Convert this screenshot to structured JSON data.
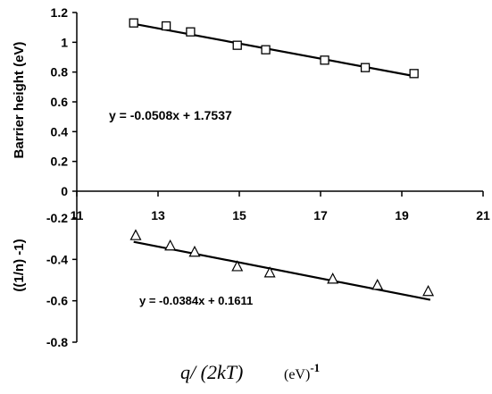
{
  "chart_data": [
    {
      "type": "scatter",
      "ylabel": "Barrier height (eV)",
      "ylim": [
        0,
        1.2
      ],
      "yticks": [
        0,
        0.2,
        0.4,
        0.6,
        0.8,
        1,
        1.2
      ],
      "ytick_labels": [
        "0",
        "0.2",
        "0.4",
        "0.6",
        "0.8",
        "1",
        "1.2"
      ],
      "xlim": [
        11,
        21
      ],
      "xticks": [
        11,
        13,
        15,
        17,
        19,
        21
      ],
      "xtick_labels": [
        "11",
        "13",
        "15",
        "17",
        "19",
        "21"
      ],
      "marker": "square",
      "series": [
        {
          "x": [
            12.4,
            13.2,
            13.8,
            14.95,
            15.65,
            17.1,
            18.1,
            19.3
          ],
          "y": [
            1.13,
            1.11,
            1.07,
            0.98,
            0.95,
            0.88,
            0.83,
            0.79
          ]
        }
      ],
      "trendline": {
        "slope": -0.0508,
        "intercept": 1.7537,
        "x_range": [
          12.4,
          19.3
        ]
      },
      "equation": "y = -0.0508x + 1.7537"
    },
    {
      "type": "scatter",
      "ylabel": "((1/n) -1)",
      "ylim": [
        -0.8,
        -0.2
      ],
      "yticks": [
        -0.2,
        -0.4,
        -0.6,
        -0.8
      ],
      "ytick_labels": [
        "-0.2",
        "-0.4",
        "-0.6",
        "-0.8"
      ],
      "xlim": [
        11,
        21
      ],
      "xlabel": "q/ (2kT)",
      "xlabel_unit": "(eV)",
      "xlabel_exponent": "-1",
      "marker": "triangle",
      "series": [
        {
          "x": [
            12.45,
            13.3,
            13.9,
            14.95,
            15.75,
            17.3,
            18.4,
            19.65
          ],
          "y": [
            -0.285,
            -0.335,
            -0.365,
            -0.435,
            -0.465,
            -0.495,
            -0.525,
            -0.555
          ]
        }
      ],
      "trendline": {
        "slope": -0.0384,
        "intercept": 0.1611,
        "x_range": [
          12.4,
          19.7
        ]
      },
      "equation": "y = -0.0384x + 0.1611"
    }
  ]
}
